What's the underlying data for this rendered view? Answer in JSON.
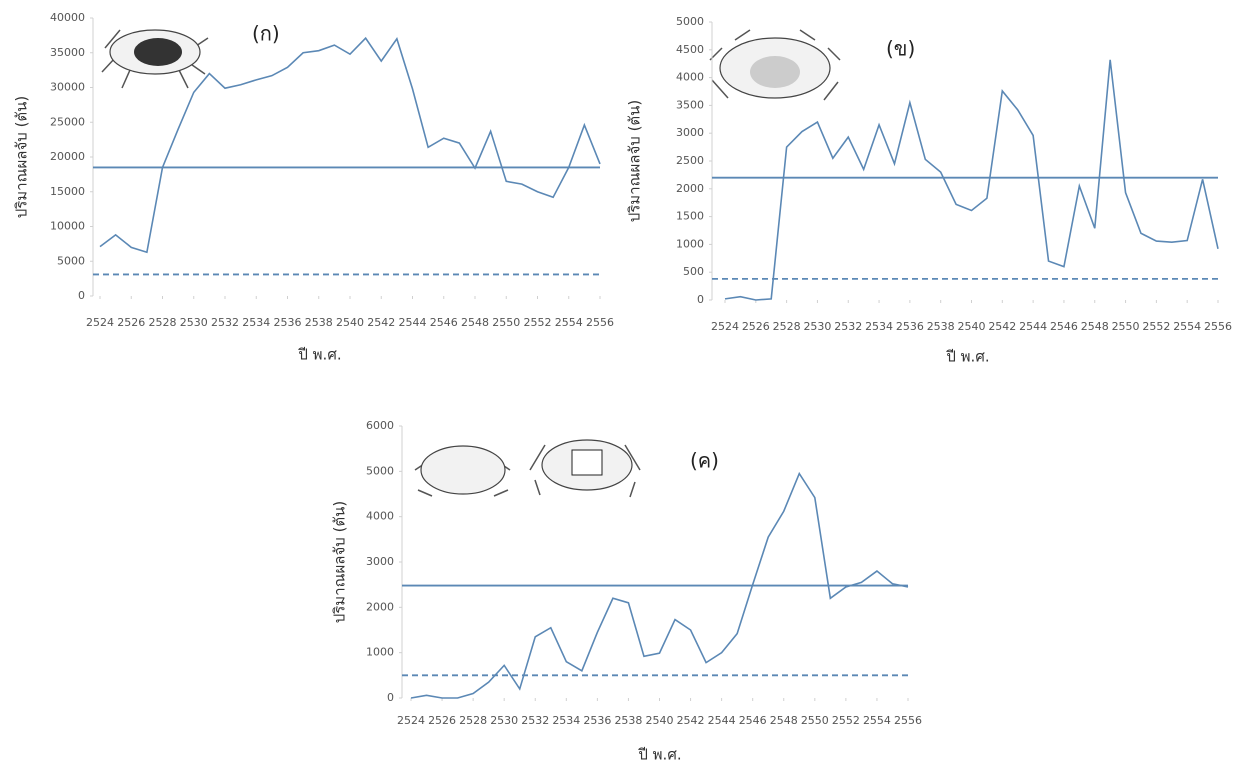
{
  "chart_data": [
    {
      "type": "line",
      "annotation": "(ก)",
      "xlabel": "ปี พ.ศ.",
      "ylabel": "ปริมาณผลจับ (ตัน)",
      "color": "#5b88b5",
      "x": [
        2524,
        2525,
        2526,
        2527,
        2528,
        2529,
        2530,
        2531,
        2532,
        2533,
        2534,
        2535,
        2536,
        2537,
        2538,
        2539,
        2540,
        2541,
        2542,
        2543,
        2544,
        2545,
        2546,
        2547,
        2548,
        2549,
        2550,
        2551,
        2552,
        2553,
        2554,
        2555,
        2556
      ],
      "values": [
        7100,
        8800,
        7000,
        6300,
        18500,
        24000,
        29300,
        32000,
        29900,
        30400,
        31100,
        31700,
        32900,
        35000,
        35300,
        36100,
        34800,
        37100,
        33800,
        37000,
        29800,
        21400,
        22700,
        22000,
        18400,
        23700,
        16500,
        16100,
        15000,
        14200,
        18500,
        24600,
        19000
      ],
      "hlines": [
        {
          "value": 18500,
          "style": "solid"
        },
        {
          "value": 3100,
          "style": "dashed"
        }
      ],
      "xlim": [
        2524,
        2556
      ],
      "xticks": [
        2524,
        2526,
        2528,
        2530,
        2532,
        2534,
        2536,
        2538,
        2540,
        2542,
        2544,
        2546,
        2548,
        2550,
        2552,
        2554,
        2556
      ],
      "ylim": [
        0,
        40000
      ],
      "yticks": [
        0,
        5000,
        10000,
        15000,
        20000,
        25000,
        30000,
        35000,
        40000
      ]
    },
    {
      "type": "line",
      "annotation": "(ข)",
      "xlabel": "ปี พ.ศ.",
      "ylabel": "ปริมาณผลจับ (ตัน)",
      "color": "#5b88b5",
      "x": [
        2524,
        2525,
        2526,
        2527,
        2528,
        2529,
        2530,
        2531,
        2532,
        2533,
        2534,
        2535,
        2536,
        2537,
        2538,
        2539,
        2540,
        2541,
        2542,
        2543,
        2544,
        2545,
        2546,
        2547,
        2548,
        2549,
        2550,
        2551,
        2552,
        2553,
        2554,
        2555,
        2556
      ],
      "values": [
        20,
        60,
        0,
        20,
        2750,
        3030,
        3200,
        2550,
        2930,
        2350,
        3150,
        2450,
        3550,
        2530,
        2300,
        1720,
        1610,
        1830,
        3760,
        3420,
        2960,
        700,
        600,
        2050,
        1290,
        4320,
        1930,
        1200,
        1060,
        1040,
        1070,
        2170,
        920
      ],
      "hlines": [
        {
          "value": 2200,
          "style": "solid"
        },
        {
          "value": 380,
          "style": "dashed"
        }
      ],
      "xlim": [
        2524,
        2556
      ],
      "xticks": [
        2524,
        2526,
        2528,
        2530,
        2532,
        2534,
        2536,
        2538,
        2540,
        2542,
        2544,
        2546,
        2548,
        2550,
        2552,
        2554,
        2556
      ],
      "ylim": [
        0,
        5000
      ],
      "yticks": [
        0,
        500,
        1000,
        1500,
        2000,
        2500,
        3000,
        3500,
        4000,
        4500,
        5000
      ]
    },
    {
      "type": "line",
      "annotation": "(ค)",
      "xlabel": "ปี พ.ศ.",
      "ylabel": "ปริมาณผลจับ (ตัน)",
      "color": "#5b88b5",
      "x": [
        2524,
        2525,
        2526,
        2527,
        2528,
        2529,
        2530,
        2531,
        2532,
        2533,
        2534,
        2535,
        2536,
        2537,
        2538,
        2539,
        2540,
        2541,
        2542,
        2543,
        2544,
        2545,
        2546,
        2547,
        2548,
        2549,
        2550,
        2551,
        2552,
        2553,
        2554,
        2555,
        2556
      ],
      "values": [
        0,
        60,
        0,
        0,
        100,
        350,
        720,
        200,
        1350,
        1550,
        800,
        600,
        1450,
        2200,
        2100,
        920,
        990,
        1730,
        1500,
        780,
        1000,
        1420,
        2500,
        3550,
        4120,
        4950,
        4420,
        2200,
        2450,
        2550,
        2800,
        2520,
        2450
      ],
      "hlines": [
        {
          "value": 2480,
          "style": "solid"
        },
        {
          "value": 500,
          "style": "dashed"
        }
      ],
      "xlim": [
        2524,
        2556
      ],
      "xticks": [
        2524,
        2526,
        2528,
        2530,
        2532,
        2534,
        2536,
        2538,
        2540,
        2542,
        2544,
        2546,
        2548,
        2550,
        2552,
        2554,
        2556
      ],
      "ylim": [
        0,
        6000
      ],
      "yticks": [
        0,
        1000,
        2000,
        3000,
        4000,
        5000,
        6000
      ]
    }
  ]
}
